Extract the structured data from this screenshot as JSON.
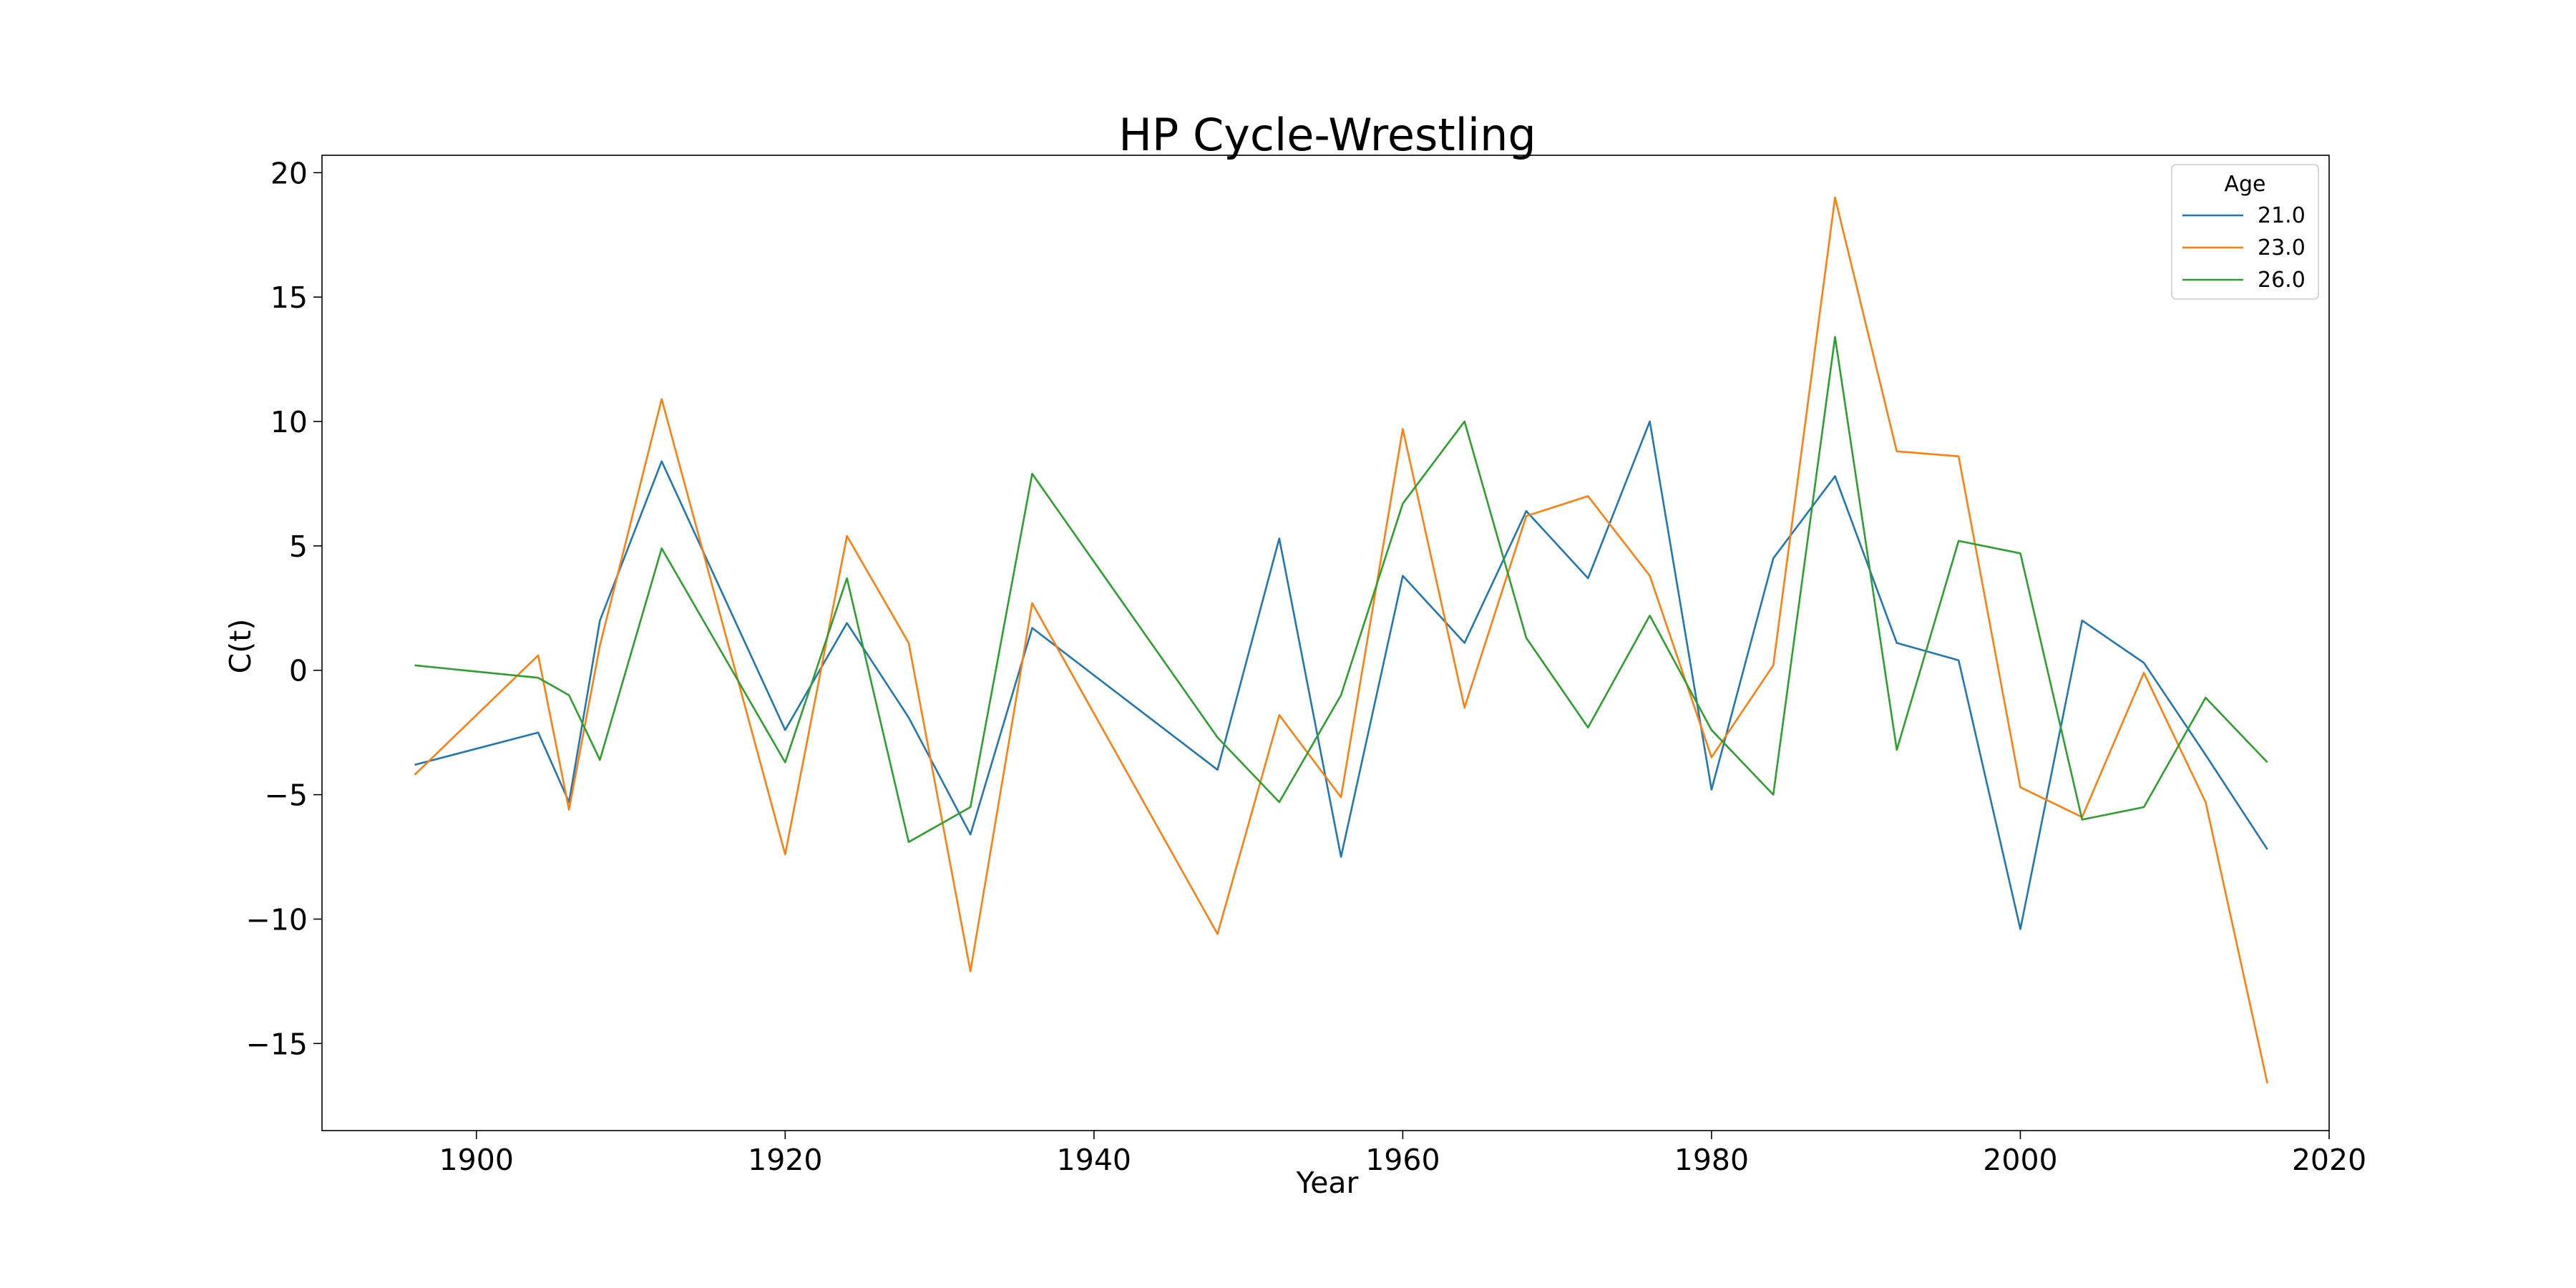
{
  "chart_data": {
    "type": "line",
    "title": "HP Cycle-Wrestling",
    "xlabel": "Year",
    "ylabel": "C(t)",
    "xlim": [
      1890,
      2020
    ],
    "ylim": [
      -18.5,
      20.7
    ],
    "xticks": [
      1900,
      1920,
      1940,
      1960,
      1980,
      2000,
      2020
    ],
    "yticks": [
      -15,
      -10,
      -5,
      0,
      5,
      10,
      15,
      20
    ],
    "grid": false,
    "legend": {
      "title": "Age",
      "placement": "top-right"
    },
    "series": [
      {
        "name": "21.0",
        "color": "#1f77b4",
        "x": [
          1896,
          1904,
          1906,
          1908,
          1912,
          1920,
          1924,
          1928,
          1932,
          1936,
          1948,
          1952,
          1956,
          1960,
          1964,
          1968,
          1972,
          1976,
          1980,
          1984,
          1988,
          1992,
          1996,
          2000,
          2004,
          2008,
          2012,
          2016
        ],
        "y": [
          -3.8,
          -2.5,
          -5.3,
          2.0,
          8.4,
          -2.4,
          1.9,
          -1.9,
          -6.6,
          1.7,
          -4.0,
          5.3,
          -7.5,
          3.8,
          1.1,
          6.4,
          3.7,
          10.0,
          -4.8,
          4.5,
          7.8,
          1.1,
          0.4,
          -10.4,
          2.0,
          0.3,
          -3.4,
          -7.2
        ]
      },
      {
        "name": "23.0",
        "color": "#ff7f0e",
        "x": [
          1896,
          1904,
          1906,
          1908,
          1912,
          1920,
          1924,
          1928,
          1932,
          1936,
          1948,
          1952,
          1956,
          1960,
          1964,
          1968,
          1972,
          1976,
          1980,
          1984,
          1988,
          1992,
          1996,
          2000,
          2004,
          2008,
          2012,
          2016
        ],
        "y": [
          -4.2,
          0.6,
          -5.6,
          1.0,
          10.9,
          -7.4,
          5.4,
          1.1,
          -12.1,
          2.7,
          -10.6,
          -1.8,
          -5.1,
          9.7,
          -1.5,
          6.2,
          7.0,
          3.8,
          -3.5,
          0.2,
          19.0,
          8.8,
          8.6,
          -4.7,
          -5.9,
          -0.1,
          -5.3,
          -16.6
        ]
      },
      {
        "name": "26.0",
        "color": "#2ca02c",
        "x": [
          1896,
          1904,
          1906,
          1908,
          1912,
          1920,
          1924,
          1928,
          1932,
          1936,
          1948,
          1952,
          1956,
          1960,
          1964,
          1968,
          1972,
          1976,
          1980,
          1984,
          1988,
          1992,
          1996,
          2000,
          2004,
          2008,
          2012,
          2016
        ],
        "y": [
          0.2,
          -0.3,
          -1.0,
          -3.6,
          4.9,
          -3.7,
          3.7,
          -6.9,
          -5.5,
          7.9,
          -2.7,
          -5.3,
          -1.0,
          6.7,
          10.0,
          1.3,
          -2.3,
          2.2,
          -2.4,
          -5.0,
          13.4,
          -3.2,
          5.2,
          4.7,
          -6.0,
          -5.5,
          -1.1,
          -3.7
        ]
      }
    ]
  }
}
